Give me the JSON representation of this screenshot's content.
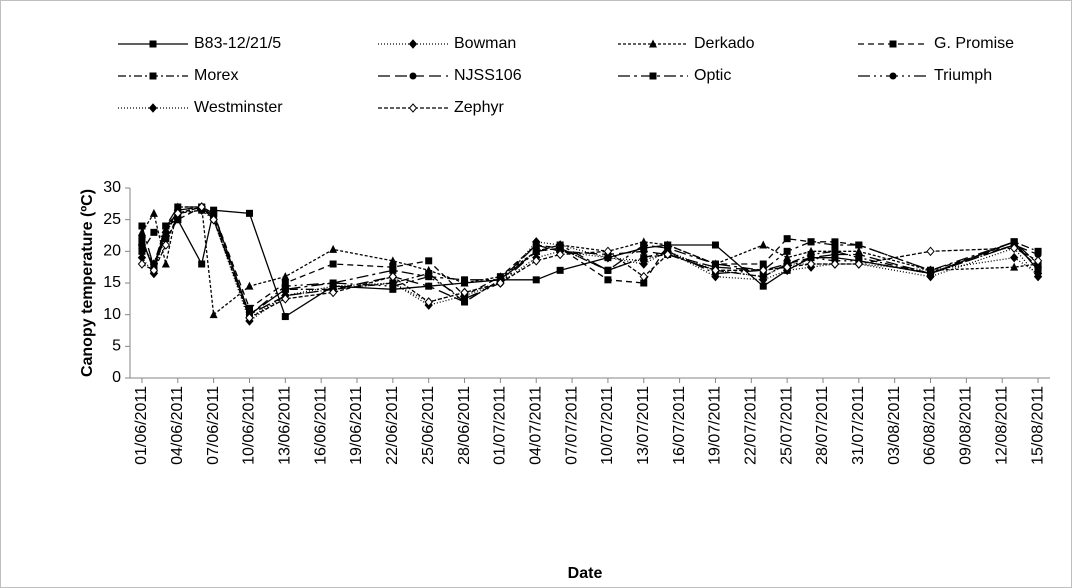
{
  "chart_data": {
    "type": "line",
    "x_label": "Date",
    "y_label": "Canopy temperature (ºC)",
    "x": [
      "01/06/2011",
      "02/06/2011",
      "03/06/2011",
      "04/06/2011",
      "06/06/2011",
      "07/06/2011",
      "10/06/2011",
      "13/06/2011",
      "17/06/2011",
      "22/06/2011",
      "25/06/2011",
      "28/06/2011",
      "01/07/2011",
      "04/07/2011",
      "06/07/2011",
      "10/07/2011",
      "13/07/2011",
      "15/07/2011",
      "19/07/2011",
      "23/07/2011",
      "25/07/2011",
      "27/07/2011",
      "29/07/2011",
      "31/07/2011",
      "06/08/2011",
      "13/08/2011",
      "15/08/2011"
    ],
    "xlim": [
      "31/05/2011",
      "16/08/2011"
    ],
    "xticks": [
      "01/06/2011",
      "04/06/2011",
      "07/06/2011",
      "10/06/2011",
      "13/06/2011",
      "16/06/2011",
      "19/06/2011",
      "22/06/2011",
      "25/06/2011",
      "28/06/2011",
      "01/07/2011",
      "04/07/2011",
      "07/07/2011",
      "10/07/2011",
      "13/07/2011",
      "16/07/2011",
      "19/07/2011",
      "22/07/2011",
      "25/07/2011",
      "28/07/2011",
      "31/07/2011",
      "03/08/2011",
      "06/08/2011",
      "09/08/2011",
      "12/08/2011",
      "15/08/2011"
    ],
    "ylim": [
      0,
      30
    ],
    "yticks": [
      0,
      5,
      10,
      15,
      20,
      25,
      30
    ],
    "series": [
      {
        "name": "B83-12/21/5",
        "color": "#000000",
        "dash": "none",
        "marker": "square",
        "values": [
          22,
          17,
          24,
          25,
          18,
          26.5,
          26,
          9.7,
          14.5,
          14,
          14.5,
          15,
          15.5,
          15.5,
          17,
          19,
          20.5,
          21,
          21,
          14.5,
          17,
          19,
          19,
          18.5,
          16.5,
          21.5,
          17
        ]
      },
      {
        "name": "Bowman",
        "color": "#000000",
        "dash": "1 2",
        "marker": "diamond",
        "values": [
          21,
          18,
          23,
          26,
          27,
          25,
          9.5,
          13,
          14,
          15,
          12,
          13.5,
          15,
          19,
          20,
          19,
          18,
          20,
          17,
          16,
          18,
          18,
          18,
          18,
          17,
          19,
          16.5
        ]
      },
      {
        "name": "Derkado",
        "color": "#000000",
        "dash": "3 2",
        "marker": "triangle",
        "values": [
          23,
          26,
          18,
          27,
          27,
          10,
          14.5,
          16,
          20.3,
          18.5,
          17,
          15,
          16,
          20,
          21,
          20,
          21.5,
          21,
          18,
          21,
          19,
          20,
          20,
          20,
          17,
          17.5,
          18
        ]
      },
      {
        "name": "G. Promise",
        "color": "#000000",
        "dash": "6 4",
        "marker": "square",
        "values": [
          20,
          23,
          22,
          25,
          27,
          26,
          11,
          15,
          18,
          17.5,
          18.5,
          13,
          16,
          21,
          20.5,
          15.5,
          15,
          21,
          18,
          18,
          22,
          21.5,
          21.5,
          21,
          17,
          21,
          17.5
        ]
      },
      {
        "name": "Morex",
        "color": "#000000",
        "dash": "8 3 2 3",
        "marker": "square",
        "values": [
          21,
          18,
          24,
          26,
          26.5,
          26,
          10,
          14,
          14,
          15,
          16.5,
          12,
          15.5,
          20,
          20.5,
          17,
          19,
          19.5,
          17,
          16,
          18,
          19.5,
          20,
          19,
          16.5,
          21.5,
          20
        ]
      },
      {
        "name": "NJSS106",
        "color": "#000000",
        "dash": "12 5",
        "marker": "circle",
        "values": [
          22,
          17,
          23,
          26.5,
          27,
          26,
          10,
          13,
          14,
          16,
          14.5,
          12,
          15.5,
          21,
          20,
          19.5,
          20,
          19.5,
          17.5,
          17,
          18,
          19,
          19.5,
          19.5,
          16.5,
          21,
          19.5
        ]
      },
      {
        "name": "Optic",
        "color": "#000000",
        "dash": "12 4 3 4",
        "marker": "square",
        "values": [
          24,
          17.5,
          24,
          27,
          27,
          25.5,
          10,
          14,
          15,
          17,
          16,
          15.5,
          15.5,
          20,
          21,
          17,
          21,
          20.5,
          18,
          17,
          20,
          21.5,
          21,
          21,
          17,
          21.5,
          18
        ]
      },
      {
        "name": "Triumph",
        "color": "#000000",
        "dash": "12 4 2 4 2 4",
        "marker": "circle",
        "values": [
          22,
          17,
          24,
          26,
          27,
          25,
          10,
          14.5,
          15,
          14.5,
          16,
          12.5,
          15,
          20,
          20.5,
          17,
          19,
          20,
          16.5,
          17,
          17.5,
          19,
          18.5,
          18.5,
          16.5,
          21,
          17.5
        ]
      },
      {
        "name": "Westminster",
        "color": "#000000",
        "dash": "1 2",
        "marker": "diamond",
        "values": [
          19,
          16.5,
          23,
          26,
          26.5,
          25,
          9,
          13,
          14.5,
          15,
          11.5,
          13,
          15,
          21.5,
          21,
          19,
          18.5,
          20,
          16,
          15.5,
          17,
          17.5,
          18,
          18,
          16,
          20.5,
          16
        ]
      },
      {
        "name": "Zephyr",
        "color": "#000000",
        "dash": "4 2",
        "marker": "diamond-open",
        "values": [
          18,
          17,
          21,
          26,
          27,
          25,
          9.5,
          12.5,
          13.5,
          16,
          12,
          13.5,
          15,
          18.5,
          19.5,
          20,
          16,
          19.5,
          17,
          17,
          17.5,
          18,
          18,
          18,
          20,
          20.5,
          18.5
        ]
      }
    ]
  }
}
